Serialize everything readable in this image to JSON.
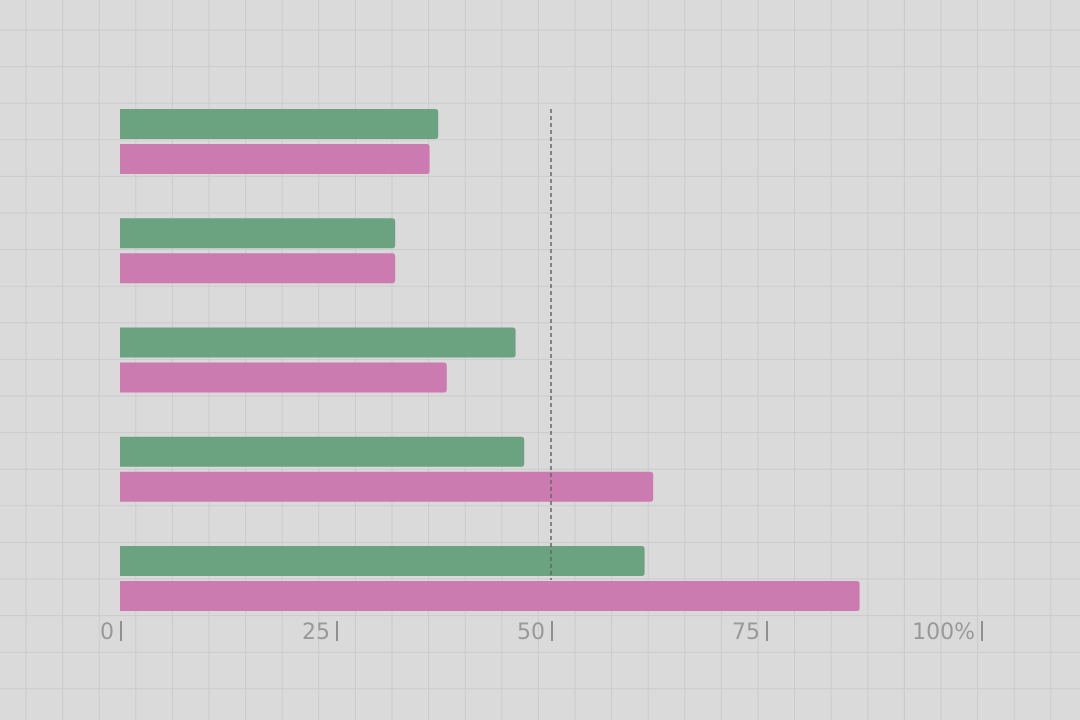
{
  "chart_data": {
    "type": "bar",
    "orientation": "horizontal",
    "categories": [
      "",
      "",
      "",
      "",
      ""
    ],
    "series": [
      {
        "values": [
          37,
          32,
          46,
          47,
          61
        ]
      },
      {
        "values": [
          36,
          32,
          38,
          62,
          86
        ]
      }
    ],
    "reference_line": {
      "value": 50,
      "style": "dashed"
    },
    "xlim": [
      0,
      100
    ],
    "x_ticks": [
      {
        "value": 0,
        "label": "0"
      },
      {
        "value": 25,
        "label": "25"
      },
      {
        "value": 50,
        "label": "50"
      },
      {
        "value": 75,
        "label": "75"
      },
      {
        "value": 100,
        "label": "100%"
      }
    ],
    "grid": true,
    "legend": "none",
    "title": "",
    "xlabel": "",
    "ylabel": ""
  },
  "colors": {
    "background": "#dadada",
    "grid": "#cbcbcb",
    "series": [
      "#6ba381",
      "#cc7bb1"
    ],
    "reference_line": "#666666",
    "tick_text": "#999999",
    "tick_mark": "#777777"
  }
}
